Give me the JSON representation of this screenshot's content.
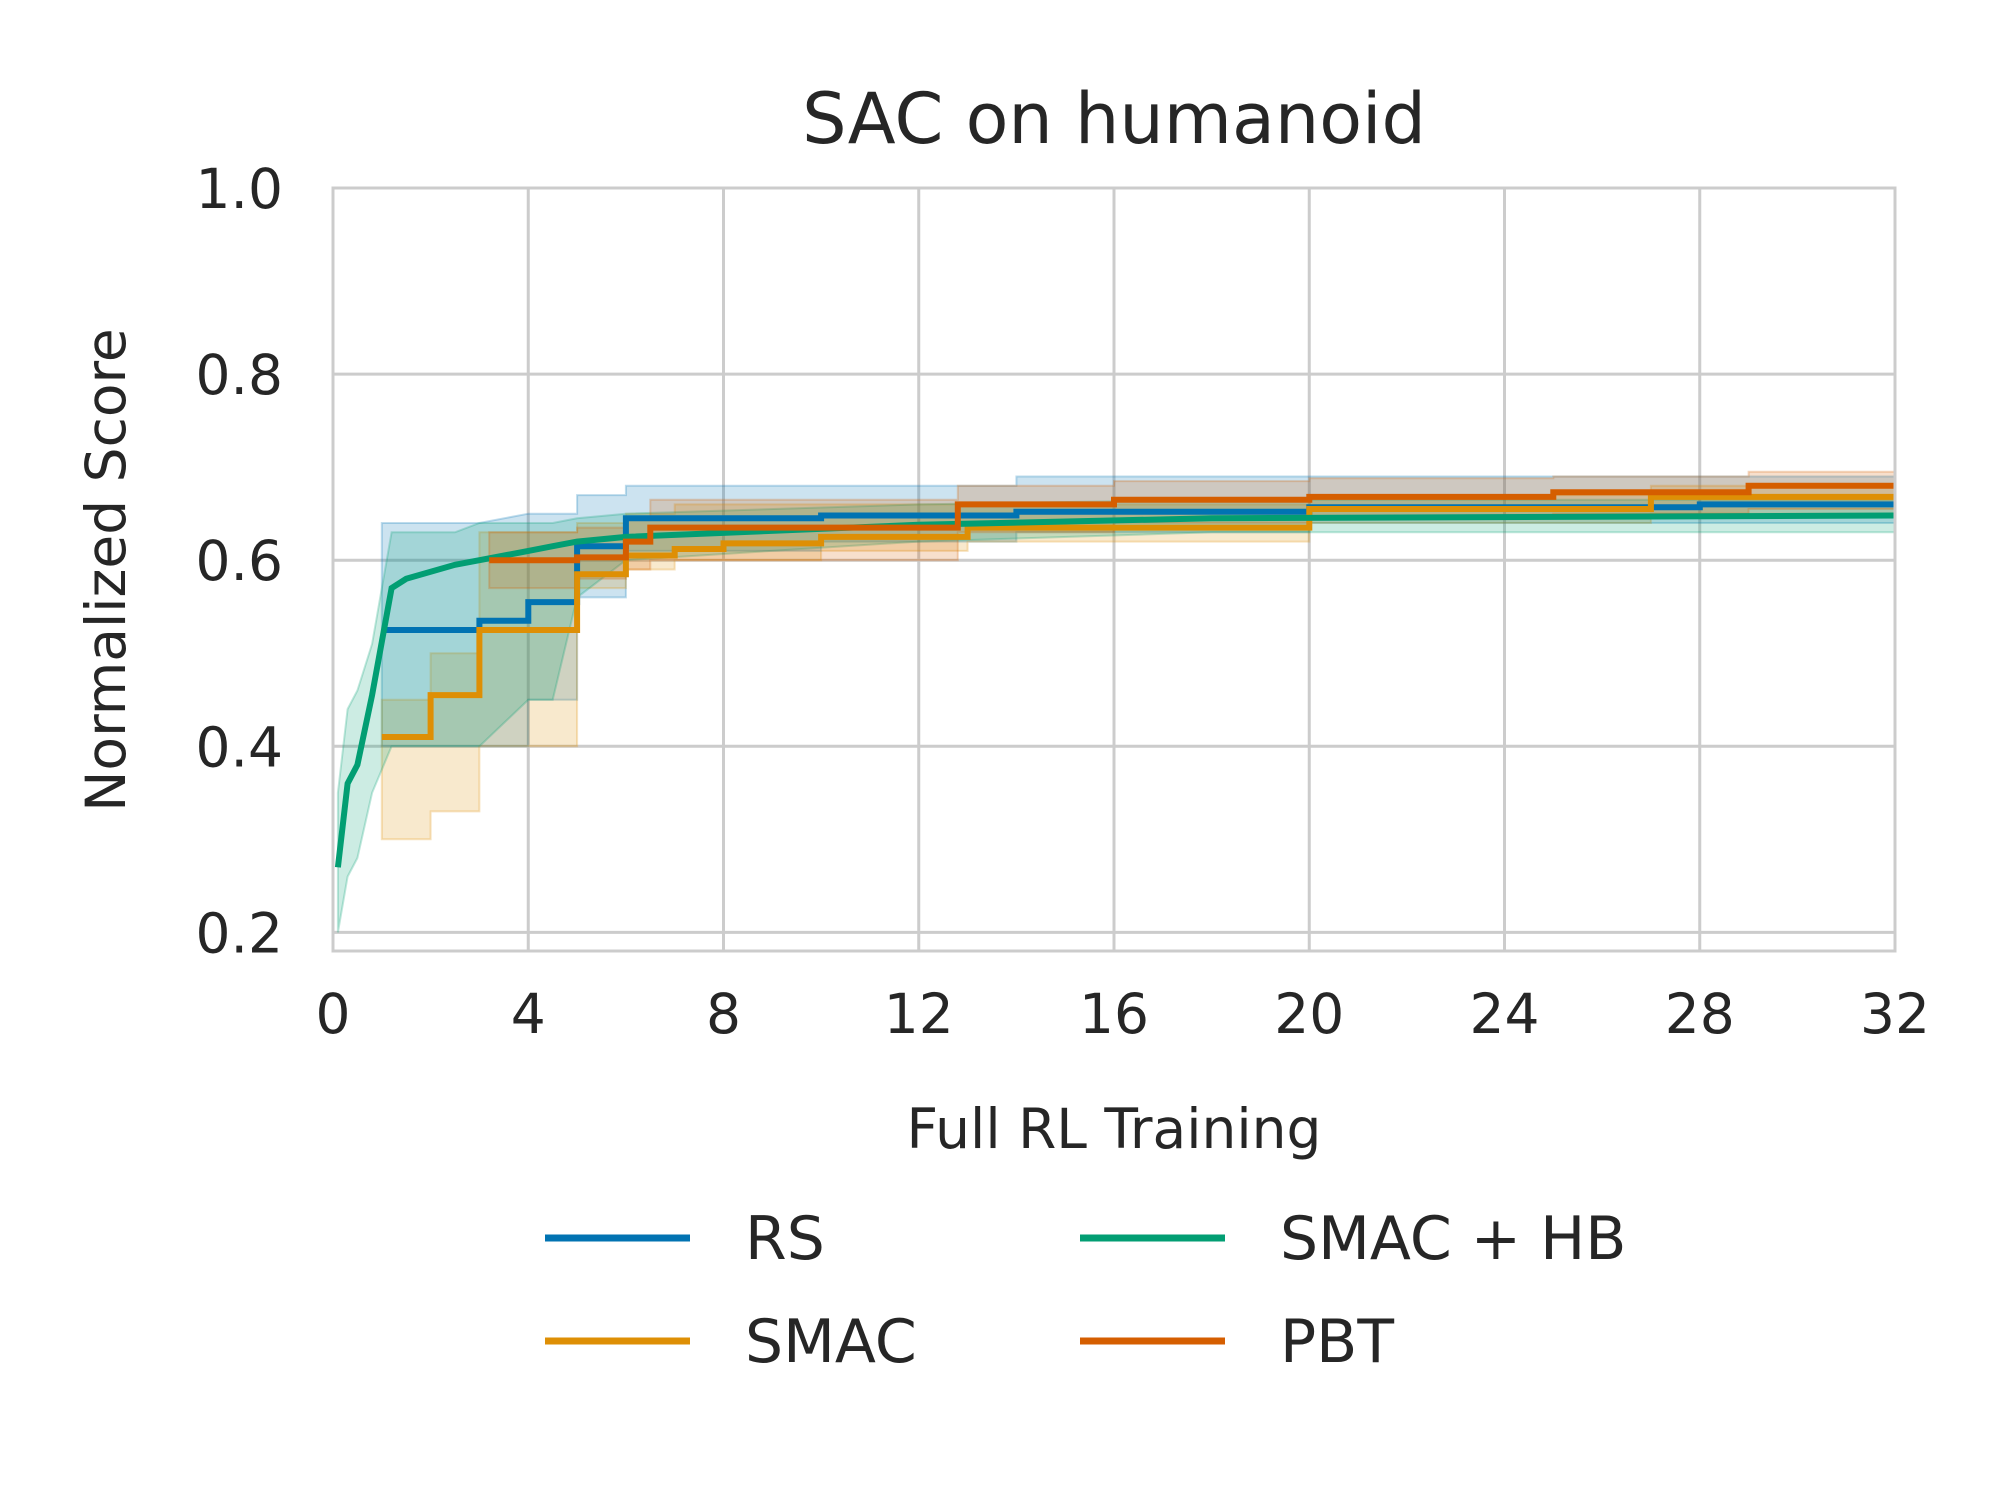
{
  "chart_data": {
    "type": "line",
    "title": "SAC on humanoid",
    "xlabel": "Full RL Training",
    "ylabel": "Normalized Score",
    "xlim": [
      0,
      32
    ],
    "ylim": [
      0.18,
      1.0
    ],
    "xticks": [
      "0",
      "4",
      "8",
      "12",
      "16",
      "20",
      "24",
      "28",
      "32"
    ],
    "yticks": [
      "0.2",
      "0.4",
      "0.6",
      "0.8",
      "1.0"
    ],
    "grid": true,
    "legend_position": "bottom",
    "series": [
      {
        "name": "RS",
        "color": "#0173b2",
        "x": [
          1.0,
          1.0,
          3.0,
          3.0,
          4.0,
          4.0,
          5.0,
          5.0,
          6.0,
          6.0,
          10.0,
          10.0,
          14.0,
          14.0,
          20.0,
          20.0,
          28.0,
          28.0,
          32.0
        ],
        "y": [
          0.525,
          0.525,
          0.525,
          0.535,
          0.535,
          0.555,
          0.555,
          0.615,
          0.615,
          0.645,
          0.645,
          0.648,
          0.648,
          0.652,
          0.652,
          0.657,
          0.657,
          0.66,
          0.66
        ],
        "lower": [
          0.4,
          0.4,
          0.4,
          0.4,
          0.4,
          0.45,
          0.45,
          0.56,
          0.56,
          0.61,
          0.61,
          0.62,
          0.62,
          0.63,
          0.63,
          0.64,
          0.64,
          0.64,
          0.64
        ],
        "upper": [
          0.64,
          0.64,
          0.64,
          0.64,
          0.65,
          0.65,
          0.65,
          0.67,
          0.67,
          0.68,
          0.68,
          0.68,
          0.68,
          0.69,
          0.69,
          0.69,
          0.69,
          0.69,
          0.69
        ]
      },
      {
        "name": "SMAC",
        "color": "#de8f05",
        "x": [
          1.0,
          1.0,
          2.0,
          2.0,
          3.0,
          3.0,
          5.0,
          5.0,
          6.0,
          6.0,
          7.0,
          7.0,
          8.0,
          8.0,
          10.0,
          10.0,
          13.0,
          13.0,
          20.0,
          20.0,
          27.0,
          27.0,
          32.0
        ],
        "y": [
          0.41,
          0.41,
          0.41,
          0.455,
          0.455,
          0.525,
          0.525,
          0.585,
          0.585,
          0.605,
          0.605,
          0.612,
          0.612,
          0.618,
          0.618,
          0.625,
          0.625,
          0.635,
          0.635,
          0.655,
          0.655,
          0.668,
          0.668
        ],
        "lower": [
          0.3,
          0.3,
          0.3,
          0.33,
          0.33,
          0.4,
          0.4,
          0.57,
          0.57,
          0.59,
          0.59,
          0.6,
          0.6,
          0.6,
          0.6,
          0.61,
          0.61,
          0.62,
          0.62,
          0.64,
          0.64,
          0.65,
          0.65
        ],
        "upper": [
          0.45,
          0.45,
          0.45,
          0.5,
          0.5,
          0.63,
          0.63,
          0.64,
          0.64,
          0.65,
          0.65,
          0.66,
          0.66,
          0.66,
          0.66,
          0.66,
          0.66,
          0.66,
          0.66,
          0.67,
          0.67,
          0.68,
          0.68
        ]
      },
      {
        "name": "SMAC + HB",
        "color": "#029e73",
        "x": [
          0.1,
          0.1,
          0.3,
          0.3,
          0.5,
          0.5,
          0.8,
          0.8,
          1.2,
          1.2,
          1.5,
          1.5,
          2.5,
          2.5,
          3.0,
          3.0,
          4.0,
          4.0,
          4.5,
          4.5,
          5.0,
          5.0,
          6.0,
          6.0,
          12.0,
          12.0,
          18.0,
          18.0,
          32.0
        ],
        "y": [
          0.27,
          0.27,
          0.36,
          0.36,
          0.38,
          0.38,
          0.455,
          0.455,
          0.57,
          0.57,
          0.58,
          0.58,
          0.595,
          0.595,
          0.6,
          0.6,
          0.61,
          0.61,
          0.615,
          0.615,
          0.62,
          0.62,
          0.625,
          0.625,
          0.638,
          0.638,
          0.645,
          0.645,
          0.648
        ],
        "lower": [
          0.2,
          0.2,
          0.26,
          0.26,
          0.28,
          0.28,
          0.35,
          0.35,
          0.4,
          0.4,
          0.4,
          0.4,
          0.4,
          0.4,
          0.4,
          0.4,
          0.45,
          0.45,
          0.45,
          0.45,
          0.56,
          0.56,
          0.6,
          0.6,
          0.62,
          0.62,
          0.63,
          0.63,
          0.63
        ],
        "upper": [
          0.35,
          0.35,
          0.44,
          0.44,
          0.46,
          0.46,
          0.51,
          0.51,
          0.63,
          0.63,
          0.63,
          0.63,
          0.63,
          0.63,
          0.64,
          0.64,
          0.64,
          0.64,
          0.64,
          0.64,
          0.645,
          0.645,
          0.65,
          0.65,
          0.66,
          0.66,
          0.665,
          0.665,
          0.665
        ]
      },
      {
        "name": "PBT",
        "color": "#d55e00",
        "x": [
          3.2,
          3.2,
          5.0,
          5.0,
          6.0,
          6.0,
          6.5,
          6.5,
          12.8,
          12.8,
          16.0,
          16.0,
          20.0,
          20.0,
          25.0,
          25.0,
          29.0,
          29.0,
          32.0
        ],
        "y": [
          0.6,
          0.6,
          0.6,
          0.603,
          0.603,
          0.62,
          0.62,
          0.635,
          0.635,
          0.66,
          0.66,
          0.665,
          0.665,
          0.668,
          0.668,
          0.673,
          0.673,
          0.68,
          0.68
        ],
        "lower": [
          0.57,
          0.57,
          0.57,
          0.58,
          0.58,
          0.59,
          0.59,
          0.6,
          0.6,
          0.63,
          0.63,
          0.64,
          0.64,
          0.645,
          0.645,
          0.65,
          0.65,
          0.655,
          0.655
        ],
        "upper": [
          0.63,
          0.63,
          0.63,
          0.635,
          0.635,
          0.645,
          0.645,
          0.665,
          0.665,
          0.68,
          0.68,
          0.685,
          0.685,
          0.688,
          0.688,
          0.69,
          0.69,
          0.695,
          0.695
        ]
      }
    ]
  }
}
